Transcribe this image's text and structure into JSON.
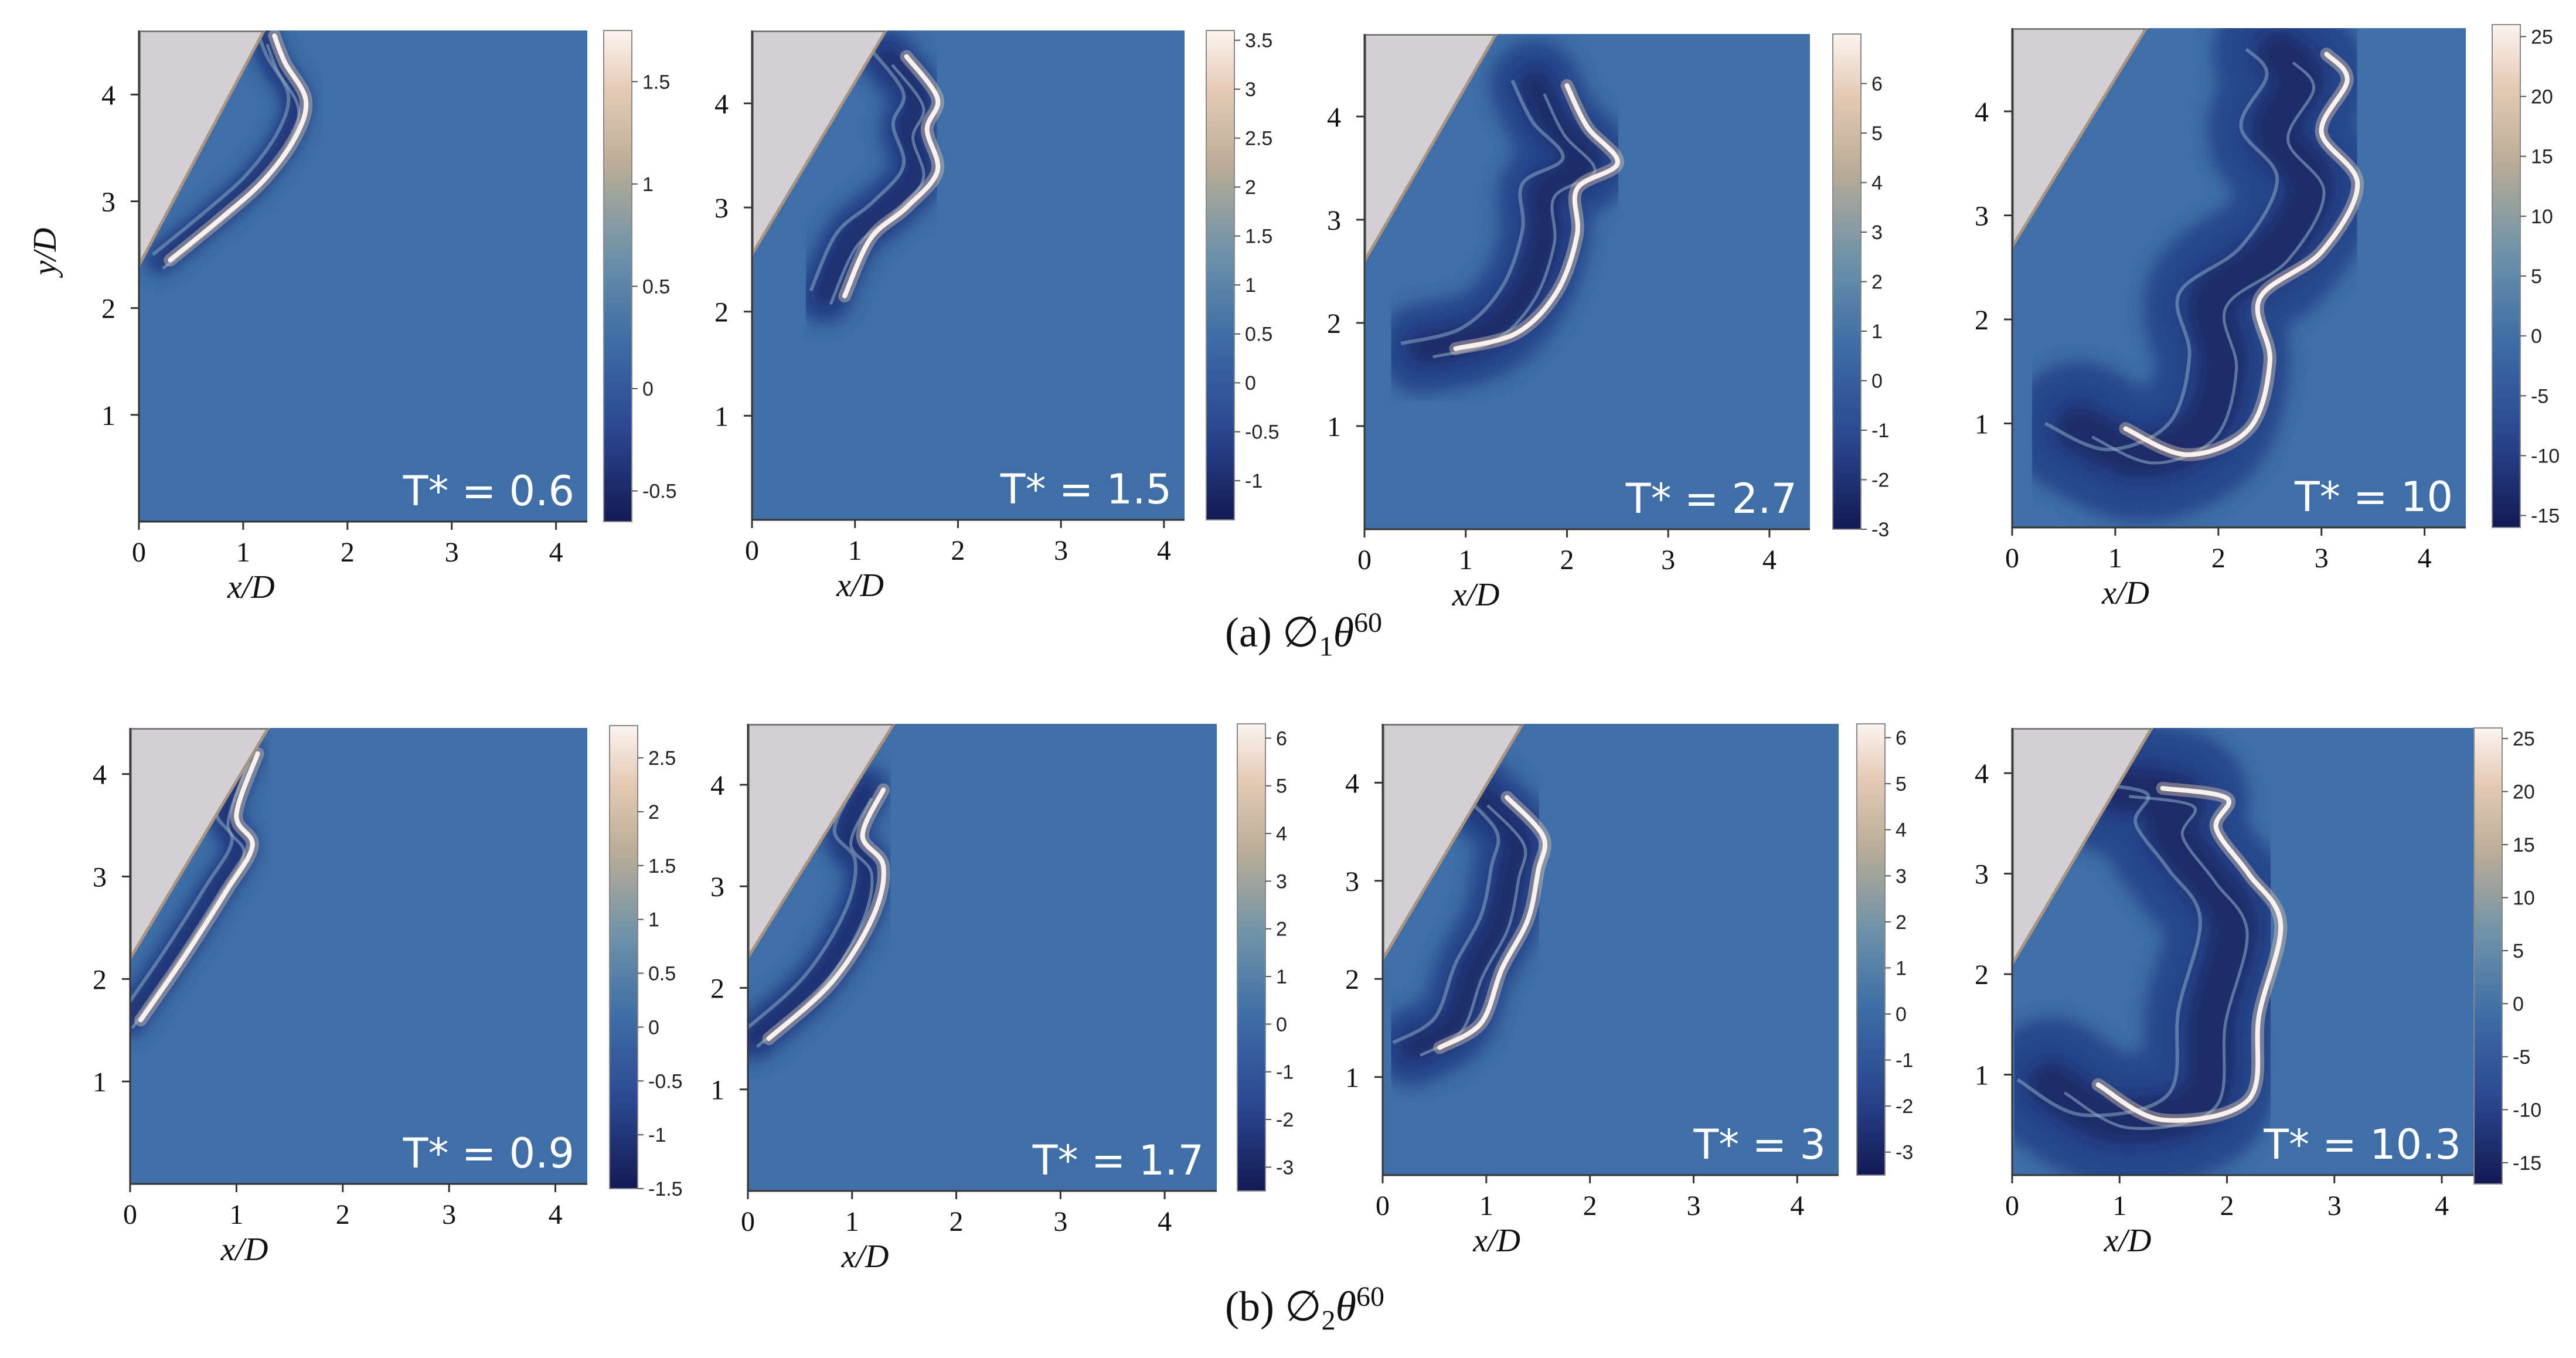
{
  "figure": {
    "captions": [
      {
        "label": "(a)",
        "symbol": "∅",
        "subscript": "1",
        "theta": "θ",
        "superscript": "60"
      },
      {
        "label": "(b)",
        "symbol": "∅",
        "subscript": "2",
        "theta": "θ",
        "superscript": "60"
      }
    ]
  },
  "colors": {
    "background_field": "#3f6fa6",
    "deep_negative": "#141850",
    "positive_peak": "#fbf1ec",
    "wedge_fill": "#d2d0d2",
    "wedge_edge": "#a89484",
    "annotation_text": "#ffffff"
  },
  "chart_data": [
    {
      "type": "heatmap",
      "row": "a",
      "label": "T* = 0.6",
      "T": 0.6,
      "xlabel": "x/D",
      "ylabel": "y/D",
      "xlim": [
        0,
        4.3
      ],
      "ylim": [
        0,
        4.6
      ],
      "xticks": [
        0,
        1,
        2,
        3,
        4
      ],
      "yticks": [
        1,
        2,
        3,
        4
      ],
      "colorbar": {
        "min": -0.65,
        "max": 1.75,
        "ticks": [
          -0.5,
          0,
          0.5,
          1,
          1.5
        ],
        "tick_labels": [
          "-0.5",
          "0",
          "0.5",
          "1",
          "1.5"
        ]
      },
      "wedge": [
        [
          0,
          2.4
        ],
        [
          1.2,
          4.6
        ],
        [
          0,
          4.6
        ]
      ],
      "front": {
        "pts": [
          [
            0.3,
            2.45
          ],
          [
            0.8,
            2.85
          ],
          [
            1.2,
            3.2
          ],
          [
            1.5,
            3.6
          ],
          [
            1.6,
            3.95
          ],
          [
            1.4,
            4.3
          ],
          [
            1.3,
            4.55
          ]
        ],
        "w": 0.28,
        "bulge": 0.12
      }
    },
    {
      "type": "heatmap",
      "row": "a",
      "label": "T* = 1.5",
      "T": 1.5,
      "xlabel": "x/D",
      "ylabel": "",
      "xlim": [
        0,
        4.2
      ],
      "ylim": [
        0,
        4.7
      ],
      "xticks": [
        0,
        1,
        2,
        3,
        4
      ],
      "yticks": [
        1,
        2,
        3,
        4
      ],
      "colorbar": {
        "min": -1.4,
        "max": 3.6,
        "ticks": [
          -1,
          -0.5,
          0,
          0.5,
          1,
          1.5,
          2,
          2.5,
          3,
          3.5
        ],
        "tick_labels": [
          "-1",
          "-0.5",
          "0",
          "0.5",
          "1",
          "1.5",
          "2",
          "2.5",
          "3",
          "3.5"
        ]
      },
      "wedge": [
        [
          0,
          2.55
        ],
        [
          1.3,
          4.7
        ],
        [
          0,
          4.7
        ]
      ],
      "front": {
        "pts": [
          [
            0.9,
            2.15
          ],
          [
            1.15,
            2.7
          ],
          [
            1.5,
            3.0
          ],
          [
            1.8,
            3.35
          ],
          [
            1.7,
            3.75
          ],
          [
            1.8,
            4.05
          ],
          [
            1.5,
            4.45
          ]
        ],
        "w": 0.55,
        "bulge": 0.2
      }
    },
    {
      "type": "heatmap",
      "row": "a",
      "label": "T* = 2.7",
      "T": 2.7,
      "xlabel": "x/D",
      "ylabel": "",
      "xlim": [
        0,
        4.4
      ],
      "ylim": [
        0,
        4.8
      ],
      "xticks": [
        0,
        1,
        2,
        3,
        4
      ],
      "yticks": [
        1,
        2,
        3,
        4
      ],
      "colorbar": {
        "min": -3,
        "max": 7,
        "ticks": [
          -3,
          -2,
          -1,
          0,
          1,
          2,
          3,
          4,
          5,
          6
        ],
        "tick_labels": [
          "-3",
          "-2",
          "-1",
          "0",
          "1",
          "2",
          "3",
          "4",
          "5",
          "6"
        ]
      },
      "wedge": [
        [
          0,
          2.6
        ],
        [
          1.3,
          4.8
        ],
        [
          0,
          4.8
        ]
      ],
      "front": {
        "pts": [
          [
            0.9,
            1.75
          ],
          [
            1.5,
            1.9
          ],
          [
            1.9,
            2.3
          ],
          [
            2.1,
            2.85
          ],
          [
            2.1,
            3.3
          ],
          [
            2.5,
            3.55
          ],
          [
            2.2,
            3.9
          ],
          [
            2.0,
            4.3
          ]
        ],
        "w": 0.9,
        "bulge": 0.3
      }
    },
    {
      "type": "heatmap",
      "row": "a",
      "label": "T* = 10",
      "T": 10,
      "xlabel": "x/D",
      "ylabel": "",
      "xlim": [
        0,
        4.4
      ],
      "ylim": [
        0,
        4.8
      ],
      "xticks": [
        0,
        1,
        2,
        3,
        4
      ],
      "yticks": [
        1,
        2,
        3,
        4
      ],
      "colorbar": {
        "min": -16,
        "max": 26,
        "ticks": [
          -15,
          -10,
          -5,
          0,
          5,
          10,
          15,
          20,
          25
        ],
        "tick_labels": [
          "-15",
          "-10",
          "-5",
          "0",
          "5",
          "10",
          "15",
          "20",
          "25"
        ]
      },
      "wedge": [
        [
          0,
          2.7
        ],
        [
          1.3,
          4.8
        ],
        [
          0,
          4.8
        ]
      ],
      "front": {
        "pts": [
          [
            1.1,
            0.95
          ],
          [
            1.7,
            0.7
          ],
          [
            2.3,
            0.95
          ],
          [
            2.5,
            1.6
          ],
          [
            2.4,
            2.2
          ],
          [
            3.0,
            2.65
          ],
          [
            3.35,
            3.3
          ],
          [
            3.0,
            3.8
          ],
          [
            3.25,
            4.3
          ],
          [
            3.05,
            4.55
          ]
        ],
        "w": 1.3,
        "bulge": 0.35
      }
    },
    {
      "type": "heatmap",
      "row": "b",
      "label": "T* = 0.9",
      "T": 0.9,
      "xlabel": "x/D",
      "ylabel": "",
      "xlim": [
        0,
        4.3
      ],
      "ylim": [
        0,
        4.45
      ],
      "xticks": [
        0,
        1,
        2,
        3,
        4
      ],
      "yticks": [
        1,
        2,
        3,
        4
      ],
      "colorbar": {
        "min": -1.5,
        "max": 2.8,
        "ticks": [
          -1.5,
          -1,
          -0.5,
          0,
          0.5,
          1,
          1.5,
          2,
          2.5
        ],
        "tick_labels": [
          "-1.5",
          "-1",
          "-0.5",
          "0",
          "0.5",
          "1",
          "1.5",
          "2",
          "2.5"
        ]
      },
      "wedge": [
        [
          0,
          2.2
        ],
        [
          1.3,
          4.45
        ],
        [
          0,
          4.45
        ]
      ],
      "front": {
        "pts": [
          [
            0.1,
            1.6
          ],
          [
            0.5,
            2.2
          ],
          [
            0.9,
            2.85
          ],
          [
            1.15,
            3.3
          ],
          [
            1.0,
            3.6
          ],
          [
            1.2,
            4.2
          ]
        ],
        "w": 0.32,
        "bulge": 0.14
      }
    },
    {
      "type": "heatmap",
      "row": "b",
      "label": "T* = 1.7",
      "T": 1.7,
      "xlabel": "x/D",
      "ylabel": "",
      "xlim": [
        0,
        4.5
      ],
      "ylim": [
        0,
        4.6
      ],
      "xticks": [
        0,
        1,
        2,
        3,
        4
      ],
      "yticks": [
        1,
        2,
        3,
        4
      ],
      "colorbar": {
        "min": -3.5,
        "max": 6.3,
        "ticks": [
          -3,
          -2,
          -1,
          0,
          1,
          2,
          3,
          4,
          5,
          6
        ],
        "tick_labels": [
          "-3",
          "-2",
          "-1",
          "0",
          "1",
          "2",
          "3",
          "4",
          "5",
          "6"
        ]
      },
      "wedge": [
        [
          0,
          2.3
        ],
        [
          1.4,
          4.6
        ],
        [
          0,
          4.6
        ]
      ],
      "front": {
        "pts": [
          [
            0.2,
            1.5
          ],
          [
            0.8,
            2.05
          ],
          [
            1.2,
            2.7
          ],
          [
            1.3,
            3.2
          ],
          [
            1.1,
            3.5
          ],
          [
            1.3,
            3.95
          ]
        ],
        "w": 0.45,
        "bulge": 0.15
      }
    },
    {
      "type": "heatmap",
      "row": "b",
      "label": "T* = 3",
      "T": 3,
      "xlabel": "x/D",
      "ylabel": "",
      "xlim": [
        0,
        4.4
      ],
      "ylim": [
        0,
        4.6
      ],
      "xticks": [
        0,
        1,
        2,
        3,
        4
      ],
      "yticks": [
        1,
        2,
        3,
        4
      ],
      "colorbar": {
        "min": -3.5,
        "max": 6.3,
        "ticks": [
          -3,
          -2,
          -1,
          0,
          1,
          2,
          3,
          4,
          5,
          6
        ],
        "tick_labels": [
          "-3",
          "-2",
          "-1",
          "0",
          "1",
          "2",
          "3",
          "4",
          "5",
          "6"
        ]
      },
      "wedge": [
        [
          0,
          2.2
        ],
        [
          1.35,
          4.6
        ],
        [
          0,
          4.6
        ]
      ],
      "front": {
        "pts": [
          [
            0.55,
            1.3
          ],
          [
            0.95,
            1.55
          ],
          [
            1.15,
            2.1
          ],
          [
            1.4,
            2.6
          ],
          [
            1.5,
            3.1
          ],
          [
            1.55,
            3.45
          ],
          [
            1.2,
            3.85
          ]
        ],
        "w": 0.75,
        "bulge": 0.28
      }
    },
    {
      "type": "heatmap",
      "row": "b",
      "label": "T* = 10.3",
      "T": 10.3,
      "xlabel": "x/D",
      "ylabel": "",
      "xlim": [
        0,
        4.3
      ],
      "ylim": [
        0,
        4.45
      ],
      "xticks": [
        0,
        1,
        2,
        3,
        4
      ],
      "yticks": [
        1,
        2,
        3,
        4
      ],
      "colorbar": {
        "min": -17,
        "max": 26,
        "ticks": [
          -15,
          -10,
          -5,
          0,
          5,
          10,
          15,
          20,
          25
        ],
        "tick_labels": [
          "-15",
          "-10",
          "-5",
          "0",
          "5",
          "10",
          "15",
          "20",
          "25"
        ]
      },
      "wedge": [
        [
          0,
          2.1
        ],
        [
          1.3,
          4.45
        ],
        [
          0,
          4.45
        ]
      ],
      "front": {
        "pts": [
          [
            0.8,
            0.9
          ],
          [
            1.4,
            0.55
          ],
          [
            2.2,
            0.75
          ],
          [
            2.3,
            1.6
          ],
          [
            2.5,
            2.5
          ],
          [
            2.2,
            3.0
          ],
          [
            1.9,
            3.45
          ],
          [
            2.0,
            3.75
          ],
          [
            1.4,
            3.85
          ]
        ],
        "w": 1.25,
        "bulge": 0.35
      }
    }
  ]
}
